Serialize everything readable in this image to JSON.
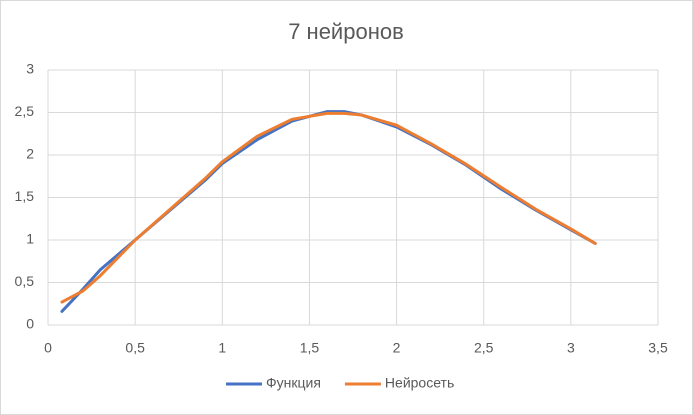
{
  "chart_data": {
    "type": "line",
    "title": "7 нейронов",
    "x": [
      0.08,
      0.2,
      0.3,
      0.5,
      0.7,
      0.9,
      1.0,
      1.2,
      1.4,
      1.6,
      1.7,
      1.8,
      2.0,
      2.2,
      2.4,
      2.6,
      2.8,
      3.0,
      3.14
    ],
    "series": [
      {
        "name": "Функция",
        "color": "#4472c4",
        "values": [
          0.16,
          0.42,
          0.65,
          1.0,
          1.35,
          1.7,
          1.9,
          2.18,
          2.4,
          2.51,
          2.51,
          2.47,
          2.33,
          2.12,
          1.88,
          1.6,
          1.35,
          1.12,
          0.96
        ]
      },
      {
        "name": "Нейросеть",
        "color": "#ed7d31",
        "values": [
          0.27,
          0.4,
          0.58,
          1.0,
          1.36,
          1.72,
          1.92,
          2.22,
          2.42,
          2.49,
          2.49,
          2.47,
          2.35,
          2.13,
          1.89,
          1.62,
          1.36,
          1.13,
          0.96
        ]
      }
    ],
    "xlim": [
      0,
      3.5
    ],
    "xticks": [
      0,
      {
        "value": 0.5,
        "label": "0,5"
      },
      1,
      {
        "value": 1.5,
        "label": "1,5"
      },
      2,
      {
        "value": 2.5,
        "label": "2,5"
      },
      3,
      {
        "value": 3.5,
        "label": "3,5"
      }
    ],
    "ylim": [
      0,
      3
    ],
    "yticks": [
      0,
      {
        "value": 0.5,
        "label": "0,5"
      },
      1,
      {
        "value": 1.5,
        "label": "1,5"
      },
      2,
      {
        "value": 2.5,
        "label": "2,5"
      },
      3
    ],
    "grid": true,
    "legend": "bottom"
  }
}
